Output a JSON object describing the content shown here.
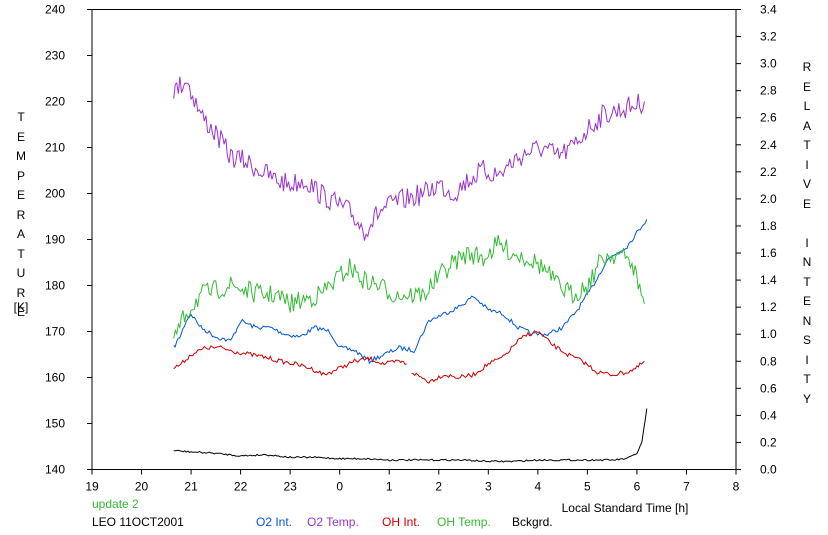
{
  "chart_data": {
    "type": "line",
    "xlabel": "Local Standard Time [h]",
    "ylabel_left": "TEMPERATURE",
    "ylabel_left_unit": "[K]",
    "ylabel_right": "RELATIVE INTENSITY",
    "xlim": [
      19,
      32
    ],
    "ylim_left": [
      140,
      240
    ],
    "ylim_right": [
      0.0,
      3.4
    ],
    "x_ticks": [
      19,
      20,
      21,
      22,
      23,
      24,
      25,
      26,
      27,
      28,
      29,
      30,
      31,
      32
    ],
    "x_tick_labels": [
      "19",
      "20",
      "21",
      "22",
      "23",
      "0",
      "1",
      "2",
      "3",
      "4",
      "5",
      "6",
      "7",
      "8"
    ],
    "y_left_ticks": [
      140,
      150,
      160,
      170,
      180,
      190,
      200,
      210,
      220,
      230,
      240
    ],
    "y_right_ticks": [
      "0.0",
      "0.2",
      "0.4",
      "0.6",
      "0.8",
      "1.0",
      "1.2",
      "1.4",
      "1.6",
      "1.8",
      "2.0",
      "2.2",
      "2.4",
      "2.6",
      "2.8",
      "3.0",
      "3.2",
      "3.4"
    ],
    "grid": false,
    "legend": "bottom",
    "series": [
      {
        "name": "O2 Int.",
        "axis": "right",
        "color": "#0055dd",
        "x": [
          20.65,
          20.8,
          20.9,
          21.0,
          21.2,
          21.5,
          21.8,
          22.0,
          22.3,
          22.6,
          22.9,
          23.2,
          23.5,
          23.8,
          24.0,
          24.3,
          24.6,
          24.9,
          25.2,
          25.5,
          25.8,
          26.1,
          26.4,
          26.7,
          27.0,
          27.3,
          27.6,
          27.9,
          28.2,
          28.5,
          28.8,
          29.1,
          29.4,
          29.6,
          29.8,
          30.0,
          30.2
        ],
        "y": [
          0.9,
          1.0,
          1.1,
          1.15,
          1.05,
          0.98,
          0.95,
          1.1,
          1.05,
          1.05,
          1.0,
          0.98,
          1.05,
          1.02,
          0.9,
          0.88,
          0.8,
          0.85,
          0.9,
          0.88,
          1.1,
          1.15,
          1.2,
          1.28,
          1.18,
          1.15,
          1.05,
          1.0,
          1.0,
          1.05,
          1.18,
          1.35,
          1.55,
          1.6,
          1.65,
          1.75,
          1.85
        ]
      },
      {
        "name": "O2 Temp.",
        "axis": "left",
        "color": "#9933cc",
        "x": [
          20.65,
          20.9,
          21.2,
          21.5,
          21.8,
          22.1,
          22.4,
          22.7,
          23.0,
          23.3,
          23.6,
          23.9,
          24.2,
          24.5,
          24.8,
          25.1,
          25.4,
          25.7,
          26.0,
          26.3,
          26.6,
          26.9,
          27.2,
          27.5,
          27.8,
          28.1,
          28.4,
          28.7,
          29.0,
          29.3,
          29.6,
          29.9,
          30.15
        ],
        "y": [
          222,
          225,
          217,
          213,
          208,
          207,
          205,
          203,
          202,
          203,
          200,
          198,
          196,
          192,
          196,
          198,
          199,
          200,
          202,
          200,
          203,
          205,
          204,
          207,
          209,
          210,
          208,
          210,
          214,
          217,
          218,
          219,
          220
        ]
      },
      {
        "name": "OH Int.",
        "axis": "right",
        "color": "#cc0000",
        "x": [
          20.65,
          20.8,
          21.0,
          21.3,
          21.6,
          21.9,
          22.2,
          22.5,
          22.8,
          23.1,
          23.4,
          23.7,
          24.0,
          24.3,
          24.6,
          24.9,
          25.2,
          25.35
        ],
        "y": [
          0.75,
          0.78,
          0.85,
          0.9,
          0.9,
          0.87,
          0.85,
          0.83,
          0.8,
          0.78,
          0.75,
          0.7,
          0.75,
          0.8,
          0.82,
          0.78,
          0.8,
          0.78
        ],
        "x2": [
          25.45,
          25.8,
          26.1,
          26.4,
          26.7,
          27.0,
          27.3,
          27.6,
          27.8,
          28.0,
          28.3,
          28.6,
          28.9,
          29.2,
          29.5,
          29.8,
          30.0,
          30.15
        ],
        "y2": [
          0.72,
          0.65,
          0.7,
          0.68,
          0.7,
          0.78,
          0.83,
          0.95,
          1.0,
          1.02,
          0.92,
          0.85,
          0.8,
          0.72,
          0.7,
          0.72,
          0.75,
          0.8
        ]
      },
      {
        "name": "OH Temp.",
        "axis": "left",
        "color": "#33bb33",
        "x": [
          20.65,
          20.9,
          21.2,
          21.5,
          21.8,
          22.1,
          22.4,
          22.7,
          23.0,
          23.3,
          23.6,
          23.9,
          24.2,
          24.5,
          24.8,
          25.1,
          25.4,
          25.7,
          26.0,
          26.3,
          26.6,
          26.9,
          27.2,
          27.5,
          27.8,
          28.1,
          28.4,
          28.7,
          29.0,
          29.3,
          29.6,
          29.9,
          30.15
        ],
        "y": [
          168,
          174,
          178,
          179,
          180,
          179,
          178,
          178,
          176,
          177,
          178,
          181,
          184,
          181,
          180,
          178,
          178,
          178,
          182,
          185,
          187,
          186,
          189,
          187,
          186,
          184,
          180,
          178,
          180,
          186,
          187,
          185,
          176
        ]
      },
      {
        "name": "Bckgrd.",
        "axis": "right",
        "color": "#000000",
        "x": [
          20.65,
          21.0,
          21.5,
          22.0,
          22.5,
          23.0,
          23.5,
          24.0,
          24.5,
          25.0,
          25.5,
          26.0,
          26.5,
          27.0,
          27.5,
          28.0,
          28.5,
          29.0,
          29.5,
          29.8,
          30.0,
          30.1,
          30.2
        ],
        "y": [
          0.14,
          0.13,
          0.12,
          0.1,
          0.11,
          0.09,
          0.09,
          0.08,
          0.08,
          0.07,
          0.07,
          0.07,
          0.07,
          0.06,
          0.06,
          0.07,
          0.07,
          0.07,
          0.07,
          0.08,
          0.12,
          0.2,
          0.45
        ]
      }
    ]
  },
  "footer": {
    "update": "update 2",
    "station": "LEO 11OCT2001"
  }
}
